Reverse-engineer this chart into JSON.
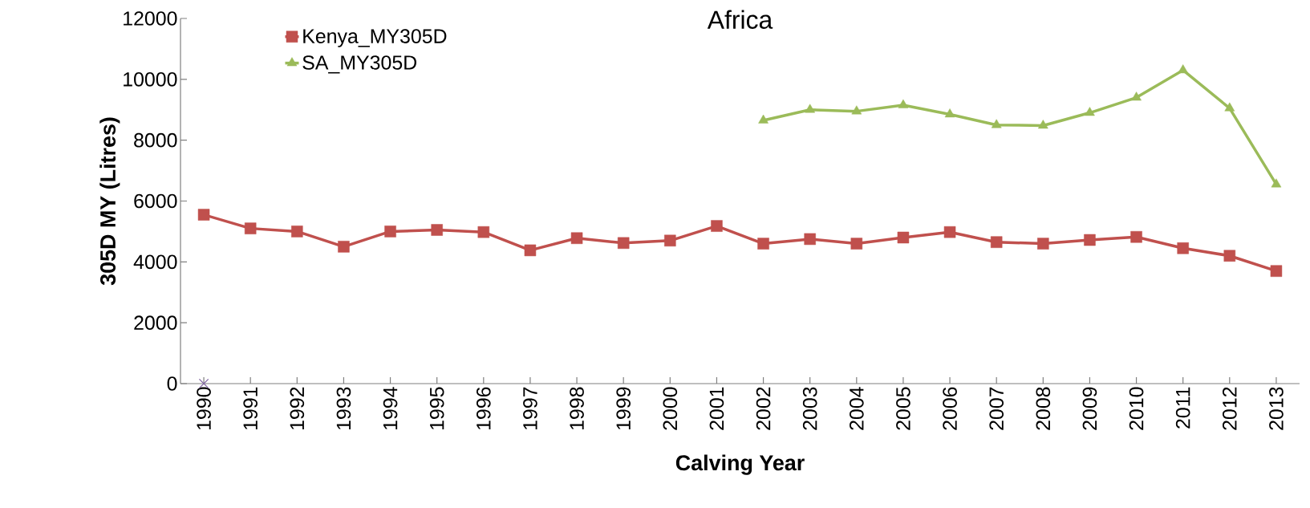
{
  "chart_data": {
    "type": "line",
    "title": "Africa",
    "xlabel": "Calving Year",
    "ylabel": "305D MY (Litres)",
    "categories": [
      "1990",
      "1991",
      "1992",
      "1993",
      "1994",
      "1995",
      "1996",
      "1997",
      "1998",
      "1999",
      "2000",
      "2001",
      "2002",
      "2003",
      "2004",
      "2005",
      "2006",
      "2007",
      "2008",
      "2009",
      "2010",
      "2011",
      "2012",
      "2013"
    ],
    "series": [
      {
        "name": "Kenya_MY305D",
        "color": "#c0504d",
        "marker": "square",
        "values": [
          5550,
          5100,
          5000,
          4500,
          5000,
          5050,
          4980,
          4380,
          4780,
          4620,
          4700,
          5180,
          4600,
          4750,
          4600,
          4800,
          4980,
          4650,
          4600,
          4720,
          4820,
          4450,
          4200,
          3700
        ]
      },
      {
        "name": "SA_MY305D",
        "color": "#9bbb59",
        "marker": "triangle",
        "values": [
          null,
          null,
          null,
          null,
          null,
          null,
          null,
          null,
          null,
          null,
          null,
          null,
          8650,
          9000,
          8950,
          9150,
          8850,
          8500,
          8480,
          8900,
          9400,
          10300,
          9050,
          6550
        ]
      },
      {
        "type": "scatter",
        "color": "#8064a2",
        "marker": "cross",
        "values": [
          0,
          null,
          null,
          null,
          null,
          null,
          null,
          null,
          null,
          null,
          null,
          null,
          null,
          null,
          null,
          null,
          null,
          null,
          null,
          null,
          null,
          null,
          null,
          null
        ]
      }
    ],
    "ylim": [
      0,
      12000
    ],
    "yticks": [
      0,
      2000,
      4000,
      6000,
      8000,
      10000,
      12000
    ],
    "legend": "top left"
  }
}
